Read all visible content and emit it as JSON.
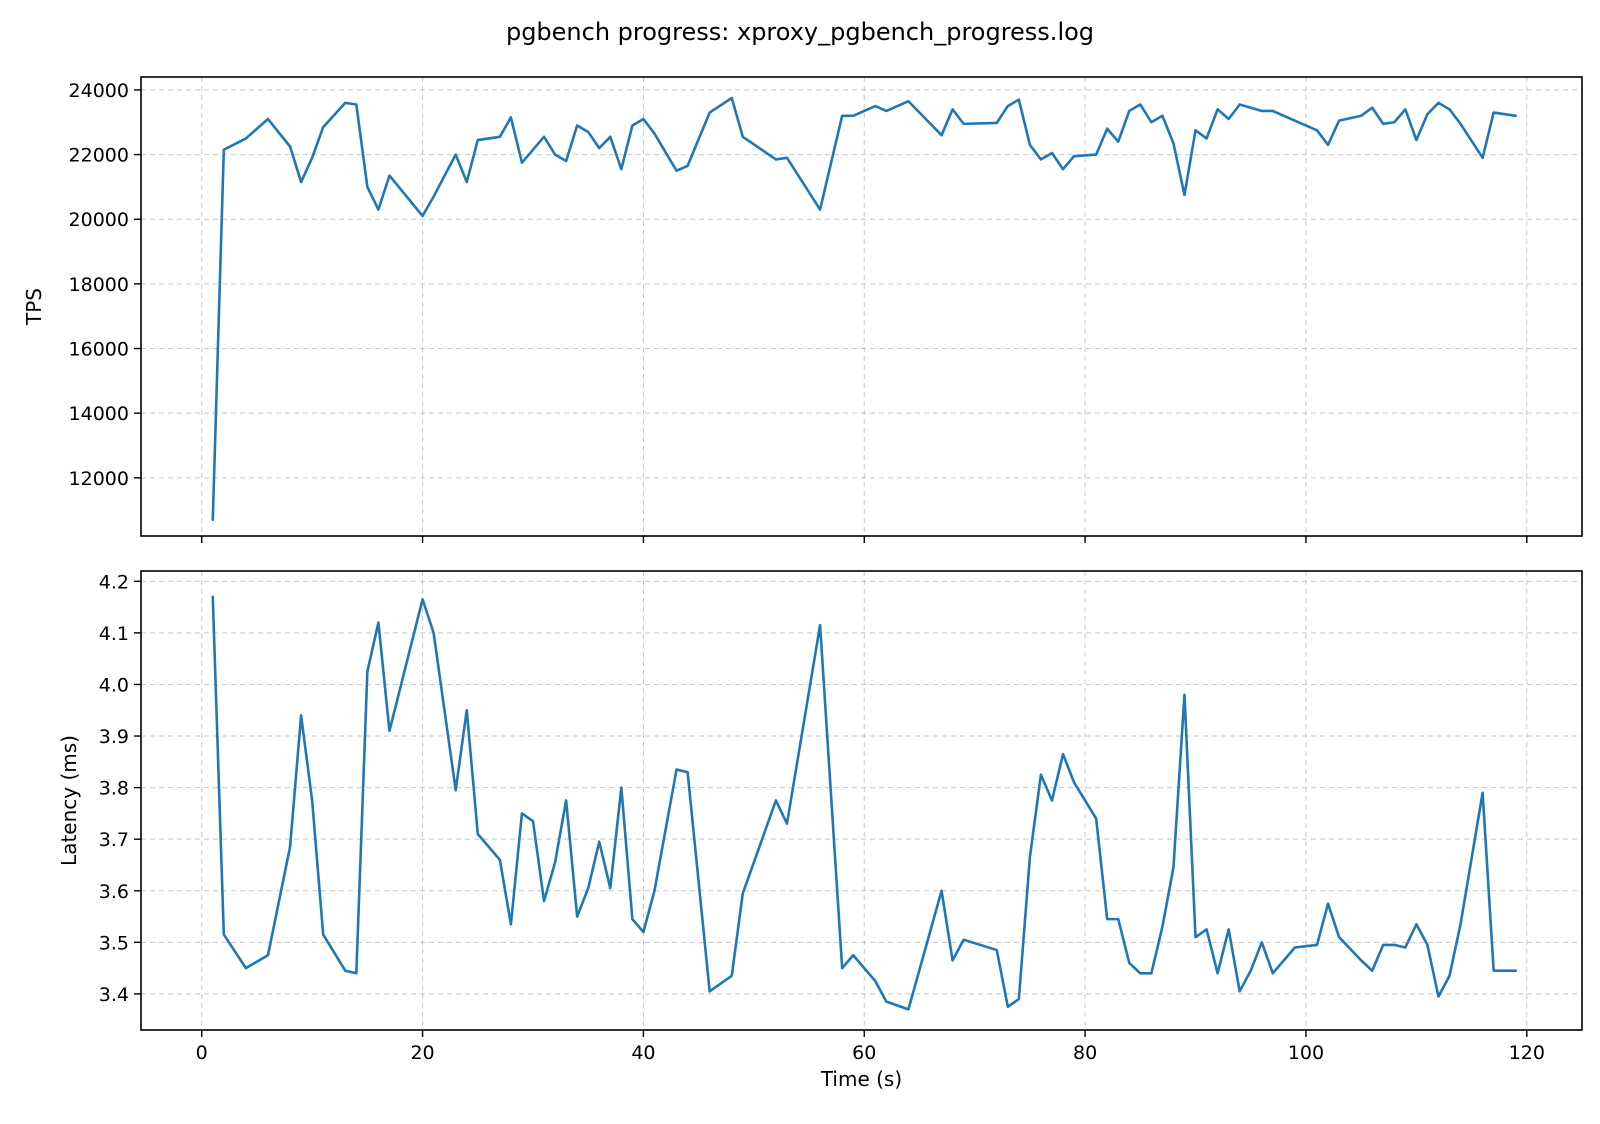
{
  "chart_data": [
    {
      "type": "line",
      "title": "pgbench progress: xproxy_pgbench_progress.log",
      "xlabel": "",
      "ylabel": "TPS",
      "xlim": [
        -5.5,
        125
      ],
      "ylim": [
        10200,
        24400
      ],
      "x_ticks": [
        0,
        20,
        40,
        60,
        80,
        100,
        120
      ],
      "y_ticks": [
        12000,
        14000,
        16000,
        18000,
        20000,
        22000,
        24000
      ],
      "x_tick_labels_visible": false,
      "grid": true,
      "color": "#1f77b4",
      "series": [
        {
          "x": [
            1,
            2,
            4,
            6,
            8,
            9,
            10,
            11,
            13,
            14,
            15,
            16,
            17,
            20,
            21,
            23,
            24,
            25,
            27,
            28,
            29,
            31,
            32,
            33,
            34,
            35,
            36,
            37,
            38,
            39,
            40,
            41,
            43,
            44,
            46,
            48,
            49,
            52,
            53,
            56,
            58,
            59,
            61,
            62,
            64,
            67,
            68,
            69,
            72,
            73,
            74,
            75,
            76,
            77,
            78,
            79,
            81,
            82,
            83,
            84,
            85,
            86,
            87,
            88,
            89,
            90,
            91,
            92,
            93,
            94,
            95,
            96,
            97,
            99,
            101,
            102,
            103,
            105,
            106,
            107,
            108,
            109,
            110,
            111,
            112,
            113,
            114,
            116,
            117,
            119
          ],
          "y": [
            10700,
            22150,
            22500,
            23100,
            22250,
            21150,
            21900,
            22850,
            23600,
            23550,
            21000,
            20300,
            21350,
            20100,
            20700,
            22000,
            21150,
            22450,
            22550,
            23150,
            21750,
            22550,
            22000,
            21800,
            22900,
            22700,
            22200,
            22550,
            21550,
            22900,
            23100,
            22650,
            21500,
            21650,
            23300,
            23750,
            22550,
            21850,
            21900,
            20300,
            23200,
            23200,
            23500,
            23350,
            23650,
            22600,
            23400,
            22950,
            22980,
            23500,
            23700,
            22300,
            21850,
            22050,
            21550,
            21950,
            22000,
            22800,
            22400,
            23350,
            23550,
            23000,
            23200,
            22350,
            20750,
            22750,
            22500,
            23400,
            23100,
            23550,
            23450,
            23350,
            23350,
            23050,
            22750,
            22300,
            23050,
            23200,
            23450,
            22950,
            23000,
            23400,
            22450,
            23250,
            23600,
            23400,
            22950,
            21900,
            23300,
            23200
          ]
        }
      ]
    },
    {
      "type": "line",
      "title": "",
      "xlabel": "Time (s)",
      "ylabel": "Latency (ms)",
      "xlim": [
        -5.5,
        125
      ],
      "ylim": [
        3.33,
        4.22
      ],
      "x_ticks": [
        0,
        20,
        40,
        60,
        80,
        100,
        120
      ],
      "y_ticks": [
        3.4,
        3.5,
        3.6,
        3.7,
        3.8,
        3.9,
        4.0,
        4.1,
        4.2
      ],
      "x_tick_labels_visible": true,
      "grid": true,
      "color": "#1f77b4",
      "series": [
        {
          "x": [
            1,
            2,
            4,
            6,
            8,
            9,
            10,
            11,
            13,
            14,
            15,
            16,
            17,
            20,
            21,
            23,
            24,
            25,
            27,
            28,
            29,
            30,
            31,
            32,
            33,
            34,
            35,
            36,
            37,
            38,
            39,
            40,
            41,
            43,
            44,
            46,
            48,
            49,
            52,
            53,
            56,
            58,
            59,
            61,
            62,
            64,
            67,
            68,
            69,
            72,
            73,
            74,
            75,
            76,
            77,
            78,
            79,
            81,
            82,
            83,
            84,
            85,
            86,
            87,
            88,
            89,
            90,
            91,
            92,
            93,
            94,
            95,
            96,
            97,
            99,
            101,
            102,
            103,
            105,
            106,
            107,
            108,
            109,
            110,
            111,
            112,
            113,
            114,
            116,
            117,
            119
          ],
          "y": [
            4.17,
            3.515,
            3.45,
            3.475,
            3.685,
            3.94,
            3.775,
            3.515,
            3.445,
            3.44,
            4.025,
            4.12,
            3.91,
            4.165,
            4.1,
            3.795,
            3.95,
            3.71,
            3.66,
            3.535,
            3.75,
            3.735,
            3.58,
            3.655,
            3.775,
            3.55,
            3.605,
            3.695,
            3.605,
            3.8,
            3.545,
            3.52,
            3.6,
            3.835,
            3.83,
            3.405,
            3.435,
            3.595,
            3.775,
            3.73,
            4.115,
            3.45,
            3.475,
            3.425,
            3.385,
            3.37,
            3.6,
            3.465,
            3.505,
            3.485,
            3.375,
            3.39,
            3.665,
            3.825,
            3.775,
            3.865,
            3.81,
            3.74,
            3.545,
            3.545,
            3.46,
            3.44,
            3.44,
            3.53,
            3.645,
            3.98,
            3.51,
            3.525,
            3.44,
            3.525,
            3.405,
            3.445,
            3.5,
            3.44,
            3.49,
            3.495,
            3.575,
            3.51,
            3.465,
            3.445,
            3.495,
            3.495,
            3.49,
            3.535,
            3.495,
            3.395,
            3.435,
            3.535,
            3.79,
            3.445,
            3.445
          ]
        }
      ]
    }
  ]
}
